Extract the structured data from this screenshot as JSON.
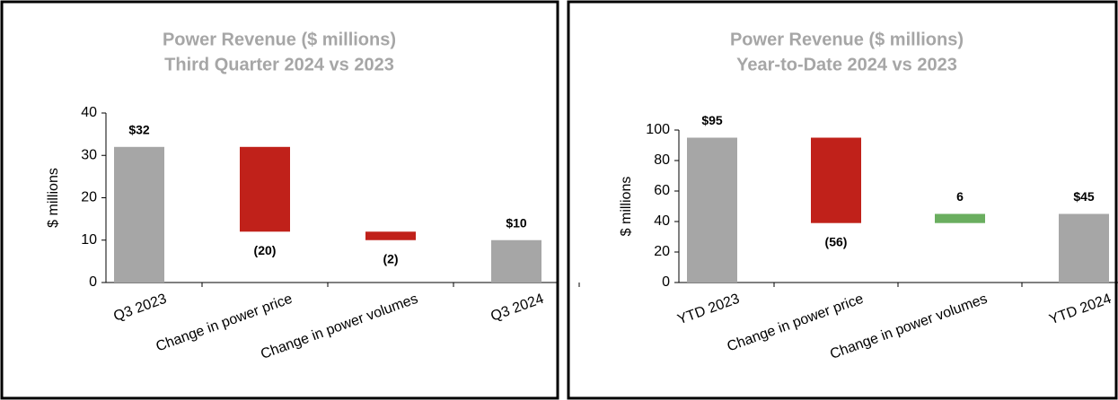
{
  "chart_data": [
    {
      "type": "waterfall",
      "title": "Power Revenue ($ millions)",
      "subtitle": "Third Quarter 2024 vs 2023",
      "y_label": "$ millions",
      "categories": [
        "Q3 2023",
        "Change in power price",
        "Change in power volumes",
        "Q3 2024"
      ],
      "values": [
        32,
        -20,
        -2,
        10
      ],
      "value_labels": [
        "$32",
        "(20)",
        "(2)",
        "$10"
      ],
      "measure": [
        "absolute",
        "relative",
        "relative",
        "total"
      ],
      "colors": {
        "total": "#a6a6a6",
        "decrease": "#c0211a",
        "increase": "#6aae5f"
      },
      "ylim": [
        0,
        40
      ],
      "yticks": [
        0,
        10,
        20,
        30,
        40
      ],
      "grid": false
    },
    {
      "type": "waterfall",
      "title": "Power Revenue ($ millions)",
      "subtitle": "Year-to-Date 2024 vs 2023",
      "y_label": "$ millions",
      "categories": [
        "YTD 2023",
        "Change in power price",
        "Change in power volumes",
        "YTD 2024"
      ],
      "values": [
        95,
        -56,
        6,
        45
      ],
      "value_labels": [
        "$95",
        "(56)",
        "6",
        "$45"
      ],
      "measure": [
        "absolute",
        "relative",
        "relative",
        "total"
      ],
      "colors": {
        "total": "#a6a6a6",
        "decrease": "#c0211a",
        "increase": "#6aae5f"
      },
      "ylim": [
        0,
        100
      ],
      "yticks": [
        0,
        20,
        40,
        60,
        80,
        100
      ],
      "grid": false
    }
  ]
}
